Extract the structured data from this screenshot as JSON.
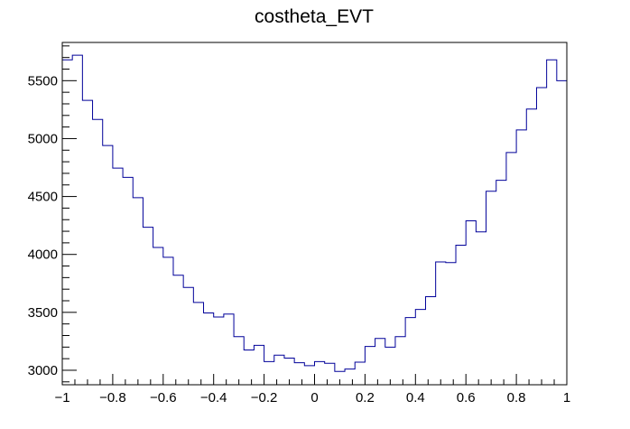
{
  "chart_data": {
    "type": "histogram",
    "title": "costheta_EVT",
    "xlabel": "",
    "ylabel": "",
    "xlim": [
      -1,
      1
    ],
    "ylim": [
      2875,
      5830
    ],
    "grid": false,
    "legend": "none",
    "line_color": "#000099",
    "frame_color": "#000000",
    "bin_edges_range": [
      -1,
      1
    ],
    "n_bins": 50,
    "values": [
      5680,
      5720,
      5330,
      5165,
      4940,
      4745,
      4665,
      4490,
      4235,
      4060,
      3975,
      3820,
      3715,
      3585,
      3495,
      3460,
      3485,
      3290,
      3175,
      3215,
      3075,
      3130,
      3105,
      3065,
      3040,
      3075,
      3060,
      2990,
      3010,
      3070,
      3205,
      3275,
      3200,
      3290,
      3455,
      3525,
      3635,
      3935,
      3930,
      4080,
      4290,
      4195,
      4545,
      4640,
      4880,
      5075,
      5255,
      5440,
      5680,
      5500
    ],
    "x_ticks": [
      {
        "value": -1,
        "label": "−1"
      },
      {
        "value": -0.8,
        "label": "−0.8"
      },
      {
        "value": -0.6,
        "label": "−0.6"
      },
      {
        "value": -0.4,
        "label": "−0.4"
      },
      {
        "value": -0.2,
        "label": "−0.2"
      },
      {
        "value": 0,
        "label": "0"
      },
      {
        "value": 0.2,
        "label": "0.2"
      },
      {
        "value": 0.4,
        "label": "0.4"
      },
      {
        "value": 0.6,
        "label": "0.6"
      },
      {
        "value": 0.8,
        "label": "0.8"
      },
      {
        "value": 1,
        "label": "1"
      }
    ],
    "y_ticks": [
      {
        "value": 3000,
        "label": "3000"
      },
      {
        "value": 3500,
        "label": "3500"
      },
      {
        "value": 4000,
        "label": "4000"
      },
      {
        "value": 4500,
        "label": "4500"
      },
      {
        "value": 5000,
        "label": "5000"
      },
      {
        "value": 5500,
        "label": "5500"
      }
    ]
  }
}
